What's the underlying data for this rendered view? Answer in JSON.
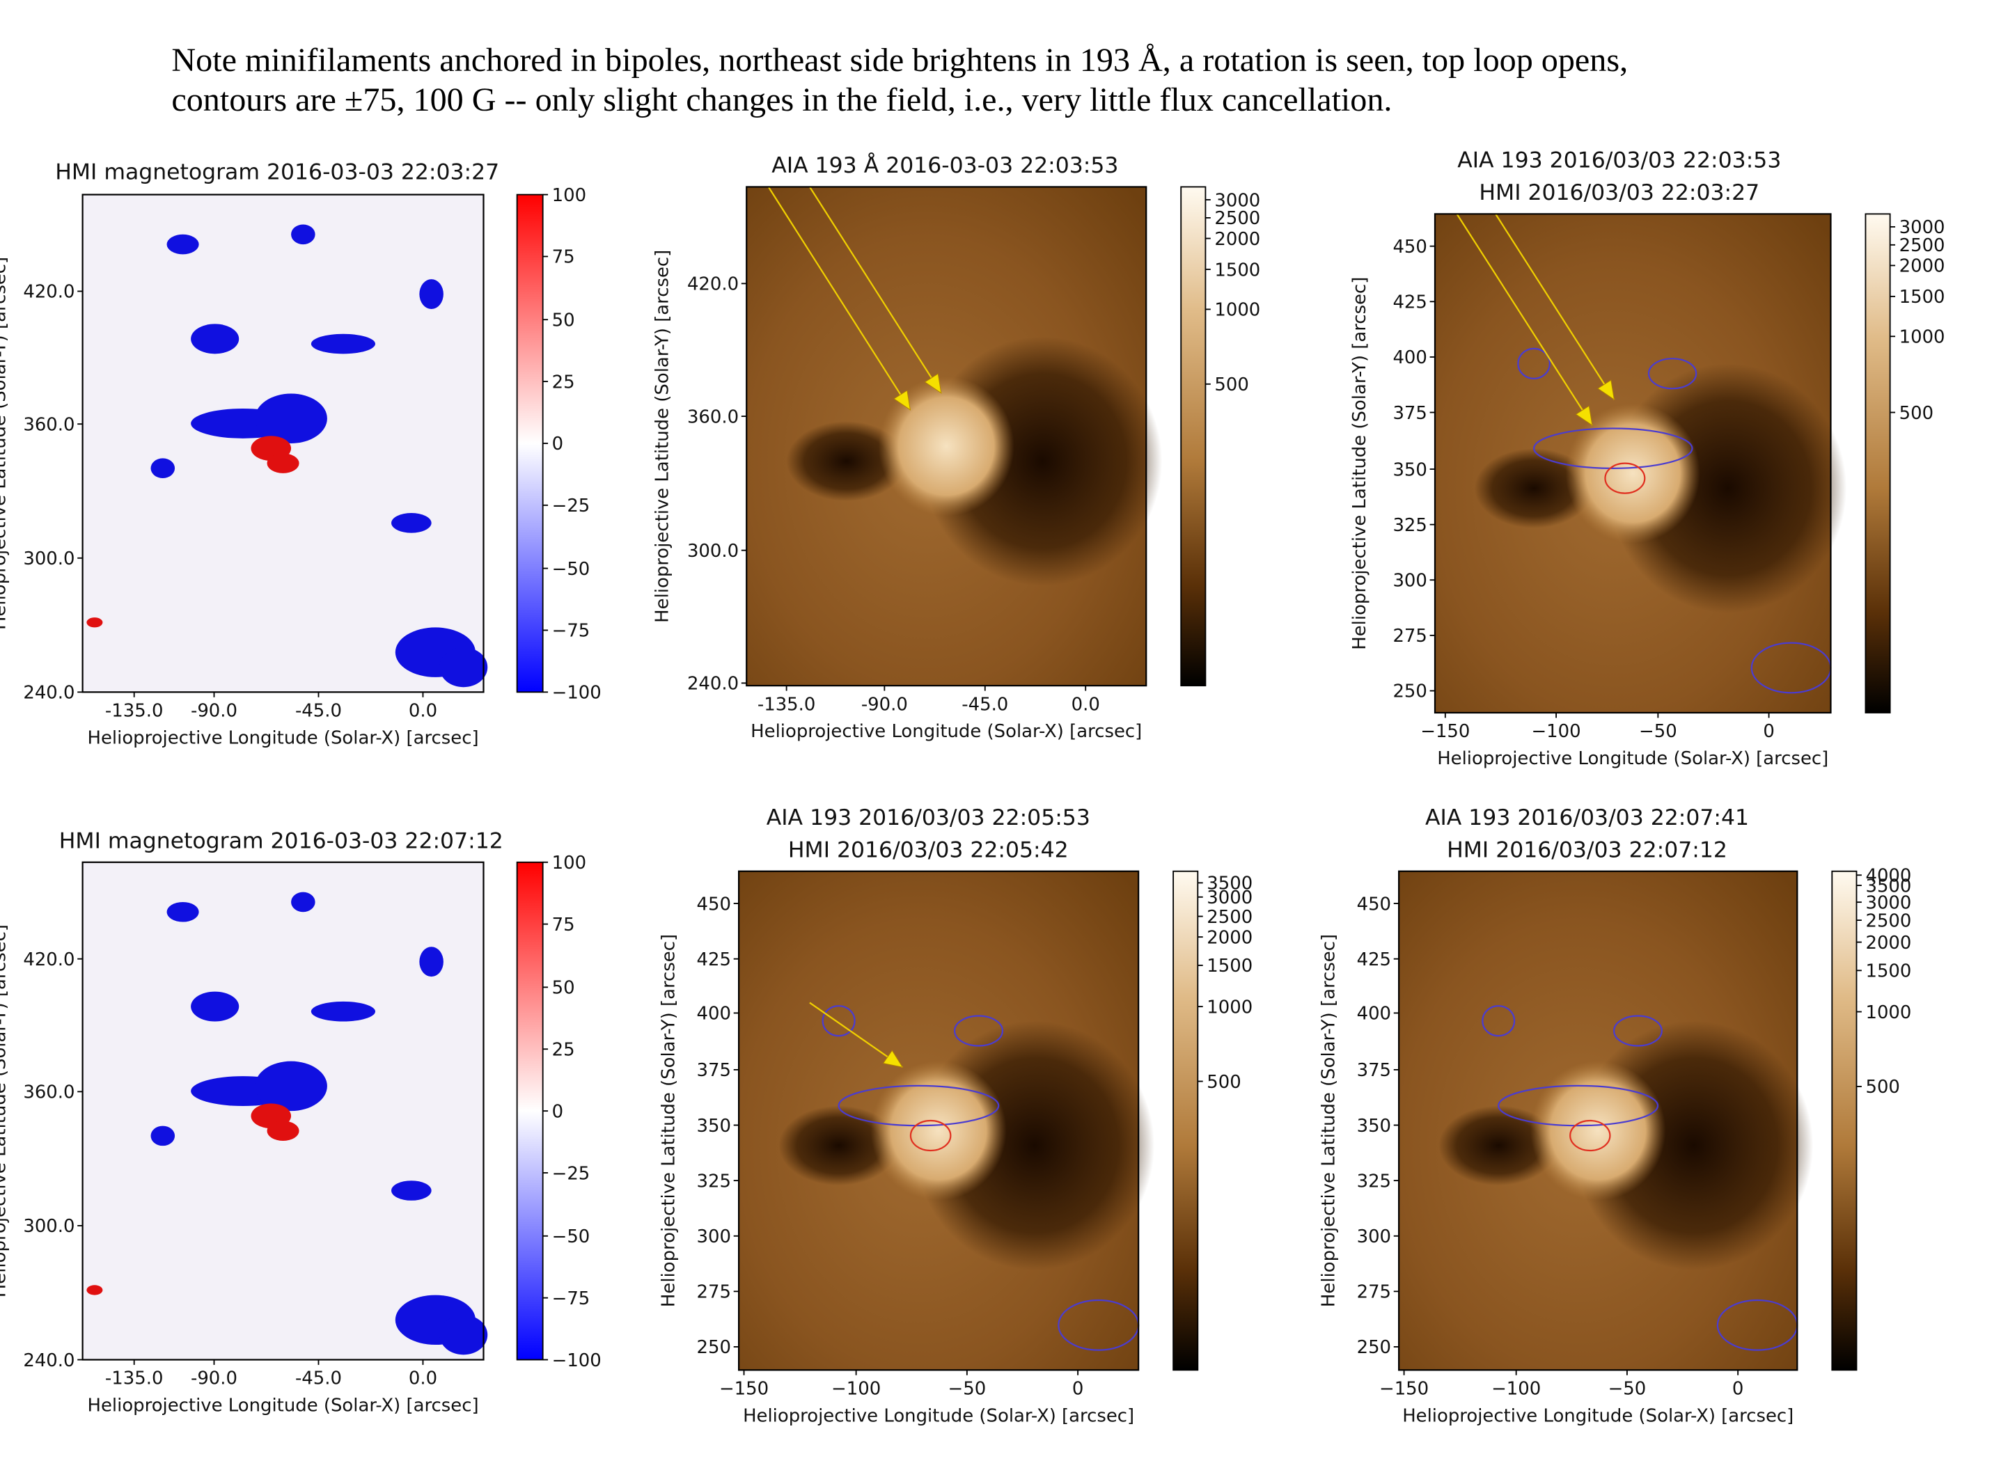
{
  "header": {
    "lines": [
      "Note minifilaments anchored in bipoles, northeast side brightens in 193 Å, a rotation is seen, top loop opens,",
      "contours are ±75, 100 G -- only slight changes in the field, i.e., very little flux cancellation."
    ]
  },
  "panels": [
    {
      "title": [
        "HMI magnetogram 2016-03-03 22:03:27"
      ],
      "xlabel": "Helioprojective Longitude (Solar-X) [arcsec]",
      "ylabel": "Helioprojective Latitude (Solar-Y) [arcsec]",
      "xticks": [
        "-135.0",
        "-90.0",
        "-45.0",
        "0.0"
      ],
      "yticks": [
        "420.0",
        "360.0",
        "300.0",
        "240.0"
      ],
      "colorbar_ticks": [
        "100",
        "75",
        "50",
        "25",
        "0",
        "−25",
        "−50",
        "−75",
        "−100"
      ]
    },
    {
      "title": [
        "AIA 193 Å 2016-03-03 22:03:53"
      ],
      "xlabel": "Helioprojective Longitude (Solar-X) [arcsec]",
      "ylabel": "Helioprojective Latitude (Solar-Y) [arcsec]",
      "xticks": [
        "-135.0",
        "-90.0",
        "-45.0",
        "0.0"
      ],
      "yticks": [
        "420.0",
        "360.0",
        "300.0",
        "240.0"
      ],
      "colorbar_ticks": [
        "3000",
        "2500",
        "2000",
        "1500",
        "1000",
        "500"
      ]
    },
    {
      "title": [
        "AIA 193 2016/03/03 22:03:53",
        "HMI 2016/03/03 22:03:27"
      ],
      "xlabel": "Helioprojective Longitude (Solar-X) [arcsec]",
      "ylabel": "Helioprojective Latitude (Solar-Y) [arcsec]",
      "xticks": [
        "−150",
        "−100",
        "−50",
        "0"
      ],
      "yticks": [
        "450",
        "425",
        "400",
        "375",
        "350",
        "325",
        "300",
        "275",
        "250"
      ],
      "colorbar_ticks": [
        "3000",
        "2500",
        "2000",
        "1500",
        "1000",
        "500"
      ]
    },
    {
      "title": [
        "HMI magnetogram 2016-03-03 22:07:12"
      ],
      "xlabel": "Helioprojective Longitude (Solar-X) [arcsec]",
      "ylabel": "Helioprojective Latitude (Solar-Y) [arcsec]",
      "xticks": [
        "-135.0",
        "-90.0",
        "-45.0",
        "0.0"
      ],
      "yticks": [
        "420.0",
        "360.0",
        "300.0",
        "240.0"
      ],
      "colorbar_ticks": [
        "100",
        "75",
        "50",
        "25",
        "0",
        "−25",
        "−50",
        "−75",
        "−100"
      ]
    },
    {
      "title": [
        "AIA 193 2016/03/03 22:05:53",
        "HMI 2016/03/03 22:05:42"
      ],
      "xlabel": "Helioprojective Longitude (Solar-X) [arcsec]",
      "ylabel": "Helioprojective Latitude (Solar-Y) [arcsec]",
      "xticks": [
        "−150",
        "−100",
        "−50",
        "0"
      ],
      "yticks": [
        "450",
        "425",
        "400",
        "375",
        "350",
        "325",
        "300",
        "275",
        "250"
      ],
      "colorbar_ticks": [
        "3500",
        "3000",
        "2500",
        "2000",
        "1500",
        "1000",
        "500"
      ]
    },
    {
      "title": [
        "AIA 193 2016/03/03 22:07:41",
        "HMI 2016/03/03 22:07:12"
      ],
      "xlabel": "Helioprojective Longitude (Solar-X) [arcsec]",
      "ylabel": "Helioprojective Latitude (Solar-Y) [arcsec]",
      "xticks": [
        "−150",
        "−100",
        "−50",
        "0"
      ],
      "yticks": [
        "450",
        "425",
        "400",
        "375",
        "350",
        "325",
        "300",
        "275",
        "250"
      ],
      "colorbar_ticks": [
        "4000",
        "3500",
        "3000",
        "2500",
        "2000",
        "1500",
        "1000",
        "500"
      ]
    }
  ]
}
